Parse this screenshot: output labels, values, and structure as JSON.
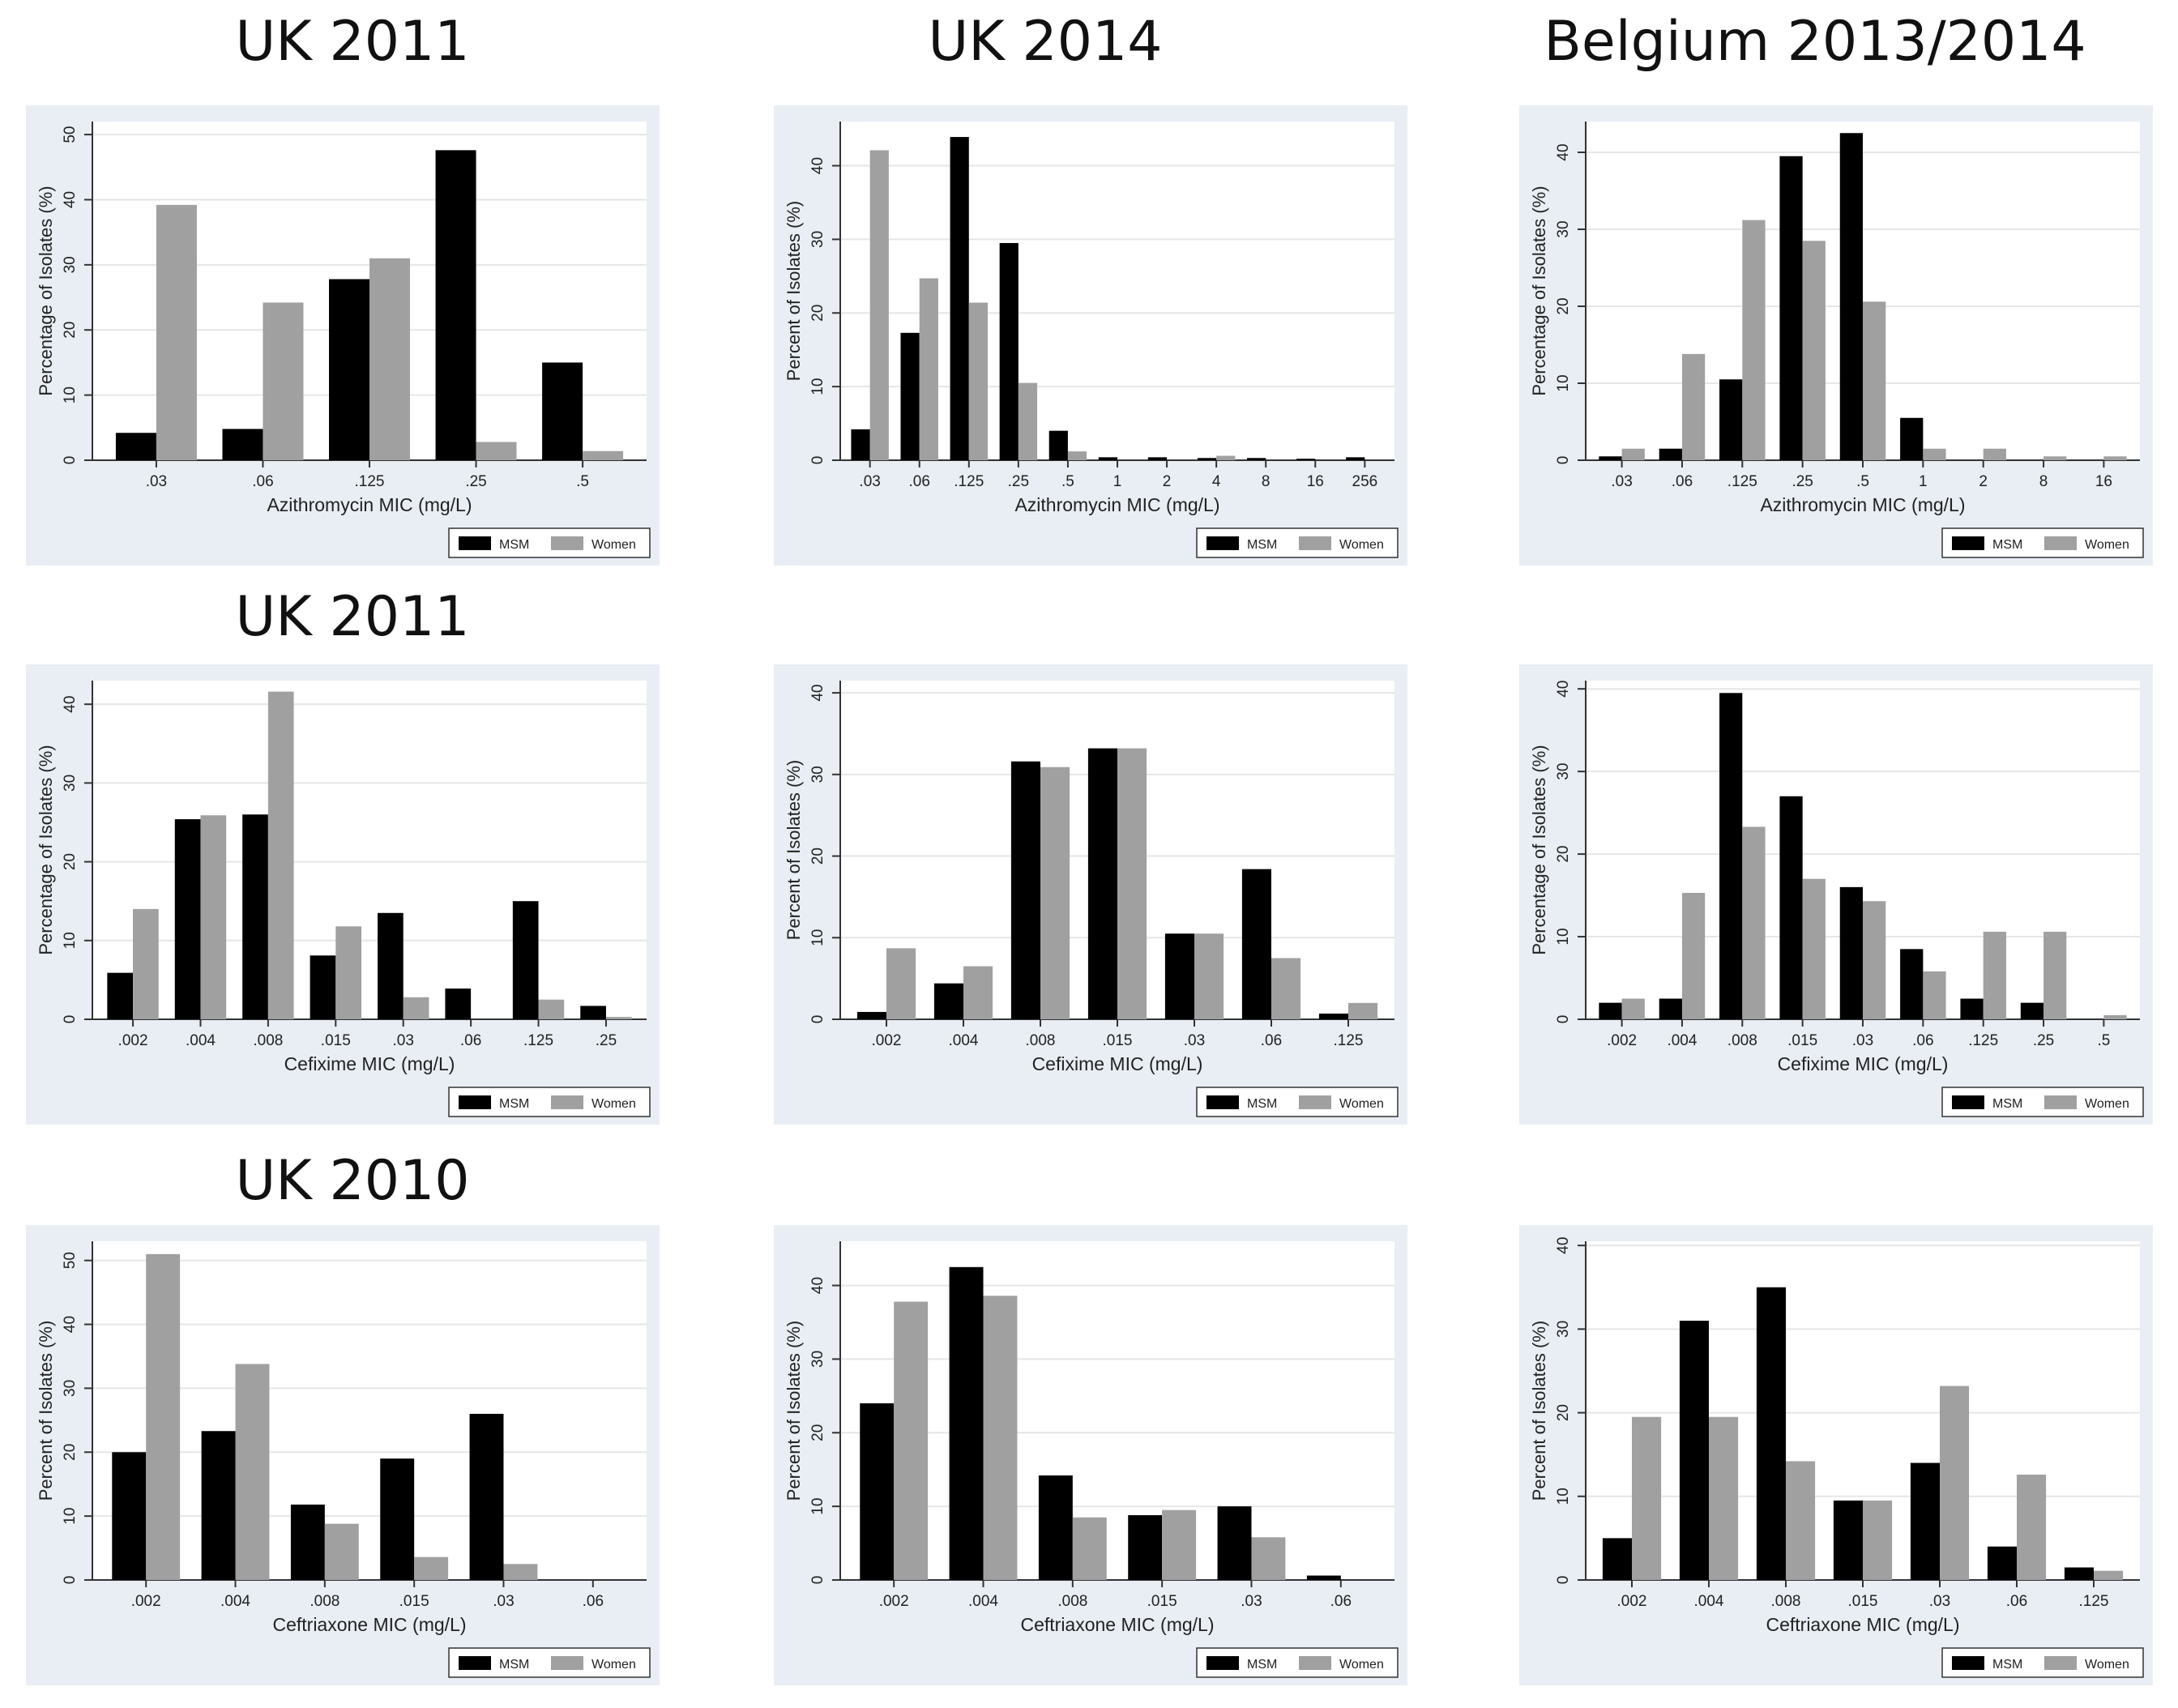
{
  "titles": {
    "uk2011_azi": "UK 2011",
    "uk2014": "UK 2014",
    "belgium": "Belgium 2013/2014",
    "uk2011_cfx": "UK 2011",
    "uk2010": "UK 2010"
  },
  "legend": {
    "msm": "MSM",
    "women": "Women"
  },
  "colors": {
    "msm": "#000000",
    "women": "#a0a0a0",
    "frame": "#e8eef3",
    "plot": "#ffffff",
    "grid": "#e6e6e6"
  },
  "chart_data": [
    {
      "type": "bar",
      "row": 0,
      "col": 0,
      "xlabel": "Azithromycin MIC (mg/L)",
      "ylabel": "Percentage of Isolates (%)",
      "ylim": [
        0,
        52
      ],
      "yticks": [
        0,
        10,
        20,
        30,
        40,
        50
      ],
      "categories": [
        ".03",
        ".06",
        ".125",
        ".25",
        ".5"
      ],
      "series": [
        {
          "name": "MSM",
          "values": [
            4.2,
            4.8,
            27.8,
            47.6,
            15.0
          ]
        },
        {
          "name": "Women",
          "values": [
            39.2,
            24.2,
            31.0,
            2.8,
            1.4
          ]
        }
      ]
    },
    {
      "type": "bar",
      "row": 0,
      "col": 1,
      "xlabel": "Azithromycin MIC (mg/L)",
      "ylabel": "Percent of Isolates (%)",
      "ylim": [
        0,
        46
      ],
      "yticks": [
        0,
        10,
        20,
        30,
        40
      ],
      "categories": [
        ".03",
        ".06",
        ".125",
        ".25",
        ".5",
        "1",
        "2",
        "4",
        "8",
        "16",
        "256"
      ],
      "series": [
        {
          "name": "MSM",
          "values": [
            4.2,
            17.3,
            43.9,
            29.5,
            4.0,
            0.4,
            0.4,
            0.3,
            0.3,
            0.2,
            0.4
          ]
        },
        {
          "name": "Women",
          "values": [
            42.1,
            24.7,
            21.4,
            10.5,
            1.2,
            0,
            0,
            0.6,
            0,
            0,
            0
          ]
        }
      ]
    },
    {
      "type": "bar",
      "row": 0,
      "col": 2,
      "xlabel": "Azithromycin MIC (mg/L)",
      "ylabel": "Percentage of Isolates (%)",
      "ylim": [
        0,
        44
      ],
      "yticks": [
        0,
        10,
        20,
        30,
        40
      ],
      "categories": [
        ".03",
        ".06",
        ".125",
        ".25",
        ".5",
        "1",
        "2",
        "8",
        "16"
      ],
      "series": [
        {
          "name": "MSM",
          "values": [
            0.5,
            1.5,
            10.5,
            39.5,
            42.5,
            5.5,
            0,
            0,
            0
          ]
        },
        {
          "name": "Women",
          "values": [
            1.5,
            13.8,
            31.2,
            28.5,
            20.6,
            1.5,
            1.5,
            0.5,
            0.5
          ]
        }
      ]
    },
    {
      "type": "bar",
      "row": 1,
      "col": 0,
      "xlabel": "Cefixime MIC (mg/L)",
      "ylabel": "Percentage of Isolates (%)",
      "ylim": [
        0,
        43
      ],
      "yticks": [
        0,
        10,
        20,
        30,
        40
      ],
      "categories": [
        ".002",
        ".004",
        ".008",
        ".015",
        ".03",
        ".06",
        ".125",
        ".25"
      ],
      "series": [
        {
          "name": "MSM",
          "values": [
            5.9,
            25.4,
            26.0,
            8.1,
            13.5,
            3.9,
            15.0,
            1.7
          ]
        },
        {
          "name": "Women",
          "values": [
            14.0,
            25.9,
            41.6,
            11.8,
            2.8,
            0,
            2.5,
            0.3
          ]
        }
      ]
    },
    {
      "type": "bar",
      "row": 1,
      "col": 1,
      "xlabel": "Cefixime MIC (mg/L)",
      "ylabel": "Percent of Isolates (%)",
      "ylim": [
        0,
        41.5
      ],
      "yticks": [
        0,
        10,
        20,
        30,
        40
      ],
      "categories": [
        ".002",
        ".004",
        ".008",
        ".015",
        ".03",
        ".06",
        ".125"
      ],
      "series": [
        {
          "name": "MSM",
          "values": [
            0.9,
            4.4,
            31.6,
            33.2,
            10.5,
            18.4,
            0.7
          ]
        },
        {
          "name": "Women",
          "values": [
            8.7,
            6.5,
            30.9,
            33.2,
            10.5,
            7.5,
            2.0
          ]
        }
      ]
    },
    {
      "type": "bar",
      "row": 1,
      "col": 2,
      "xlabel": "Cefixime MIC (mg/L)",
      "ylabel": "Percentage of Isolates (%)",
      "ylim": [
        0,
        41
      ],
      "yticks": [
        0,
        10,
        20,
        30,
        40
      ],
      "categories": [
        ".002",
        ".004",
        ".008",
        ".015",
        ".03",
        ".06",
        ".125",
        ".25",
        ".5"
      ],
      "series": [
        {
          "name": "MSM",
          "values": [
            2.0,
            2.5,
            39.5,
            27.0,
            16.0,
            8.5,
            2.5,
            2.0,
            0
          ]
        },
        {
          "name": "Women",
          "values": [
            2.5,
            15.3,
            23.3,
            17.0,
            14.3,
            5.8,
            10.6,
            10.6,
            0.5
          ]
        }
      ]
    },
    {
      "type": "bar",
      "row": 2,
      "col": 0,
      "xlabel": "Ceftriaxone MIC (mg/L)",
      "ylabel": "Percent of Isolates (%)",
      "ylim": [
        0,
        53
      ],
      "yticks": [
        0,
        10,
        20,
        30,
        40,
        50
      ],
      "categories": [
        ".002",
        ".004",
        ".008",
        ".015",
        ".03",
        ".06"
      ],
      "series": [
        {
          "name": "MSM",
          "values": [
            20.0,
            23.3,
            11.8,
            19.0,
            26.0,
            0
          ]
        },
        {
          "name": "Women",
          "values": [
            51.0,
            33.8,
            8.8,
            3.6,
            2.5,
            0
          ]
        }
      ]
    },
    {
      "type": "bar",
      "row": 2,
      "col": 1,
      "xlabel": "Ceftriaxone MIC (mg/L)",
      "ylabel": "Percent of Isolates (%)",
      "ylim": [
        0,
        46
      ],
      "yticks": [
        0,
        10,
        20,
        30,
        40
      ],
      "categories": [
        ".002",
        ".004",
        ".008",
        ".015",
        ".03",
        ".06"
      ],
      "series": [
        {
          "name": "MSM",
          "values": [
            24.0,
            42.5,
            14.2,
            8.8,
            10.0,
            0.6
          ]
        },
        {
          "name": "Women",
          "values": [
            37.8,
            38.6,
            8.5,
            9.5,
            5.8,
            0
          ]
        }
      ]
    },
    {
      "type": "bar",
      "row": 2,
      "col": 2,
      "xlabel": "Ceftriaxone MIC (mg/L)",
      "ylabel": "Percent of Isolates (%)",
      "ylim": [
        0,
        40.5
      ],
      "yticks": [
        0,
        10,
        20,
        30,
        40
      ],
      "categories": [
        ".002",
        ".004",
        ".008",
        ".015",
        ".03",
        ".06",
        ".125"
      ],
      "series": [
        {
          "name": "MSM",
          "values": [
            5.0,
            31.0,
            35.0,
            9.5,
            14.0,
            4.0,
            1.5
          ]
        },
        {
          "name": "Women",
          "values": [
            19.5,
            19.5,
            14.2,
            9.5,
            23.2,
            12.6,
            1.1
          ]
        }
      ]
    }
  ]
}
